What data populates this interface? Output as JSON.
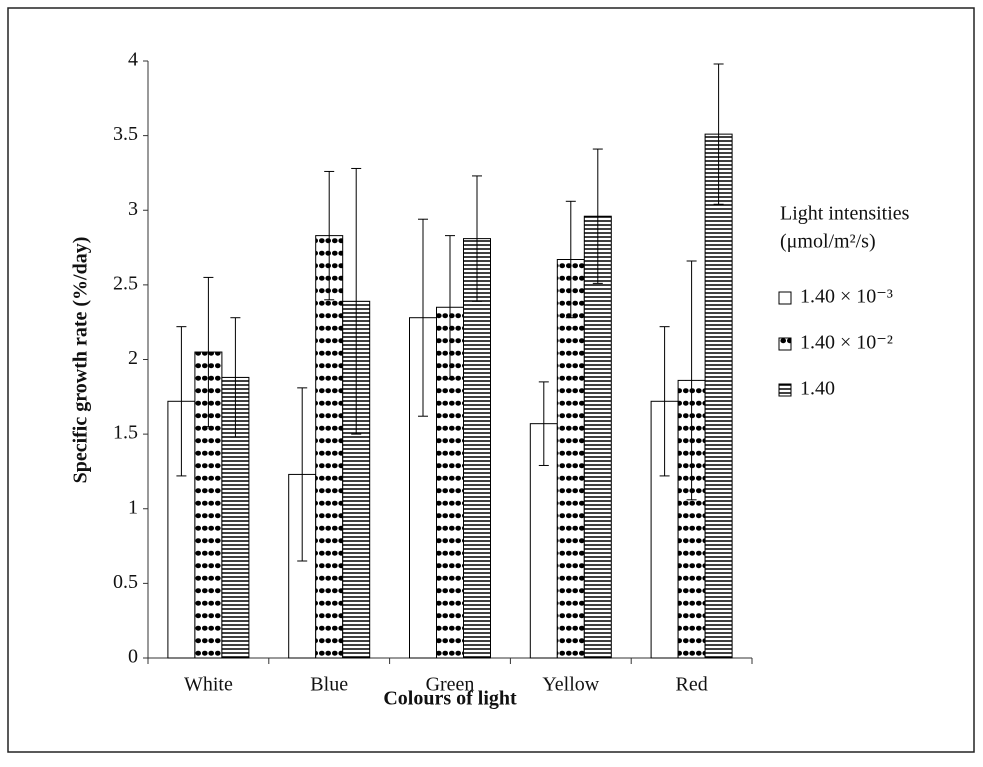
{
  "chart_data": {
    "type": "bar",
    "xlabel": "Colours of light",
    "ylabel": "Specific growth rate (%/day)",
    "categories": [
      "White",
      "Blue",
      "Green",
      "Yellow",
      "Red"
    ],
    "legend_title": [
      "Light intensities",
      "(μmol/m²/s)"
    ],
    "legend_position": "right",
    "series": [
      {
        "name": "1.40 × 10⁻³",
        "color": "#000000",
        "pattern": "none",
        "values": [
          1.72,
          1.23,
          2.28,
          1.57,
          1.72
        ],
        "errors": [
          0.5,
          0.58,
          0.66,
          0.28,
          0.5
        ]
      },
      {
        "name": "1.40 × 10⁻²",
        "color": "#000000",
        "pattern": "dots",
        "values": [
          2.05,
          2.83,
          2.35,
          2.67,
          1.86
        ],
        "errors": [
          0.5,
          0.43,
          0.48,
          0.39,
          0.8
        ]
      },
      {
        "name": "1.40",
        "color": "#000000",
        "pattern": "hlines",
        "values": [
          1.88,
          2.39,
          2.81,
          2.96,
          3.51
        ],
        "errors": [
          0.4,
          0.89,
          0.42,
          0.45,
          0.47
        ]
      }
    ],
    "ylim": [
      0,
      4
    ],
    "yticks": [
      0,
      0.5,
      1,
      1.5,
      2,
      2.5,
      3,
      3.5,
      4
    ]
  }
}
